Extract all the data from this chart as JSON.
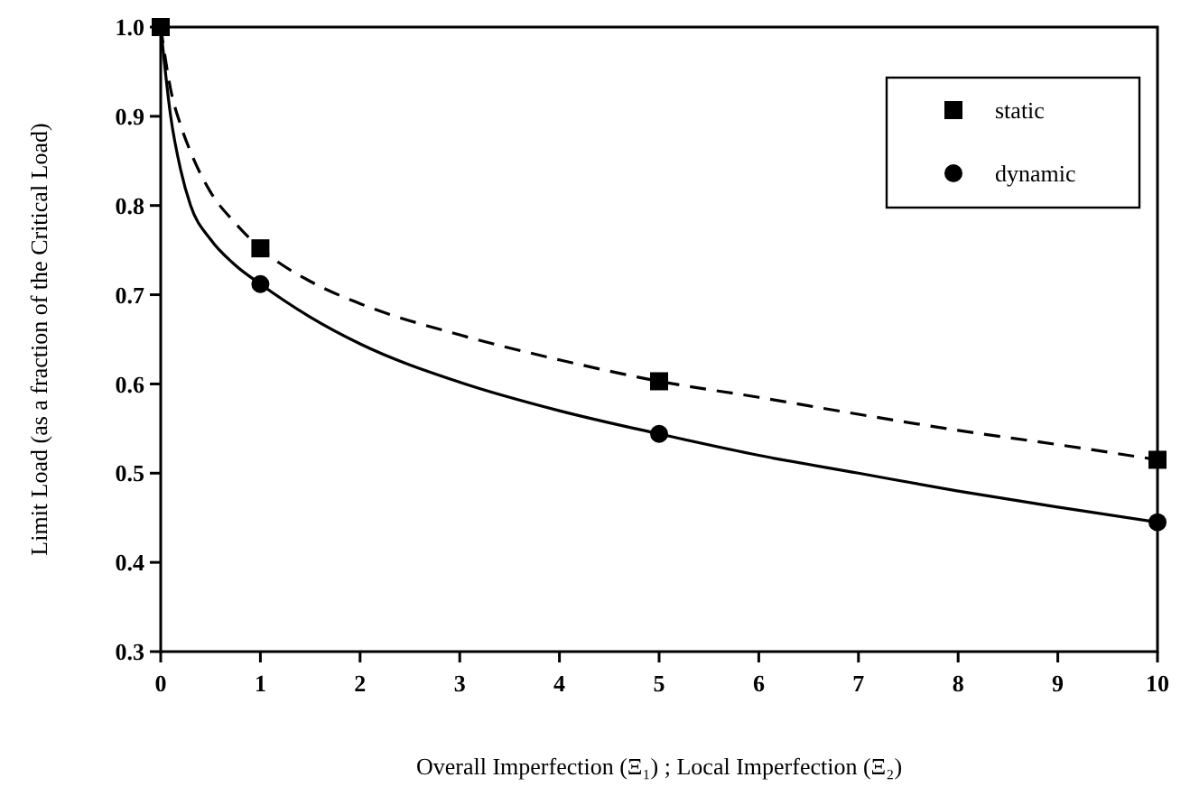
{
  "chart_data": {
    "type": "line",
    "xlabel": "Overall Imperfection (Ξ₁) ; Local Imperfection (Ξ₂)",
    "ylabel": "Limit Load (as a fraction of the Critical Load)",
    "xlim": [
      0,
      10
    ],
    "ylim": [
      0.3,
      1.0
    ],
    "xticks": [
      0,
      1,
      2,
      3,
      4,
      5,
      6,
      7,
      8,
      9,
      10
    ],
    "yticks": [
      {
        "value": 0.3,
        "label": "0.3"
      },
      {
        "value": 0.4,
        "label": "0.4"
      },
      {
        "value": 0.5,
        "label": "0.5"
      },
      {
        "value": 0.6,
        "label": "0.6"
      },
      {
        "value": 0.7,
        "label": "0.7"
      },
      {
        "value": 0.8,
        "label": "0.8"
      },
      {
        "value": 0.9,
        "label": "0.9"
      },
      {
        "value": 1.0,
        "label": "1.0"
      }
    ],
    "legend": "top right",
    "grid": false,
    "series": [
      {
        "type": "line",
        "color": "#000000",
        "line_style": "dashed",
        "marker": "none",
        "x": [
          0,
          0.1,
          0.2,
          0.3,
          0.5,
          0.75,
          1,
          1.5,
          2,
          3,
          4,
          5,
          6,
          7,
          8,
          9,
          10
        ],
        "values": [
          1.0,
          0.93,
          0.89,
          0.86,
          0.815,
          0.78,
          0.752,
          0.715,
          0.69,
          0.655,
          0.627,
          0.603,
          0.585,
          0.566,
          0.548,
          0.532,
          0.515
        ]
      },
      {
        "type": "line",
        "color": "#000000",
        "line_style": "solid",
        "marker": "none",
        "x": [
          0,
          0.1,
          0.2,
          0.3,
          0.5,
          0.75,
          1,
          1.5,
          2,
          3,
          4,
          5,
          6,
          7,
          8,
          9,
          10
        ],
        "values": [
          1.0,
          0.9,
          0.84,
          0.8,
          0.762,
          0.733,
          0.712,
          0.675,
          0.645,
          0.602,
          0.57,
          0.544,
          0.52,
          0.5,
          0.48,
          0.462,
          0.445
        ]
      },
      {
        "type": "scatter",
        "name": "static",
        "color": "#000000",
        "marker": "square",
        "x": [
          0,
          1,
          5,
          10
        ],
        "values": [
          1.0,
          0.752,
          0.603,
          0.515
        ]
      },
      {
        "type": "scatter",
        "name": "dynamic",
        "color": "#000000",
        "marker": "circle",
        "x": [
          1,
          5,
          10
        ],
        "values": [
          0.712,
          0.544,
          0.445
        ]
      }
    ]
  }
}
